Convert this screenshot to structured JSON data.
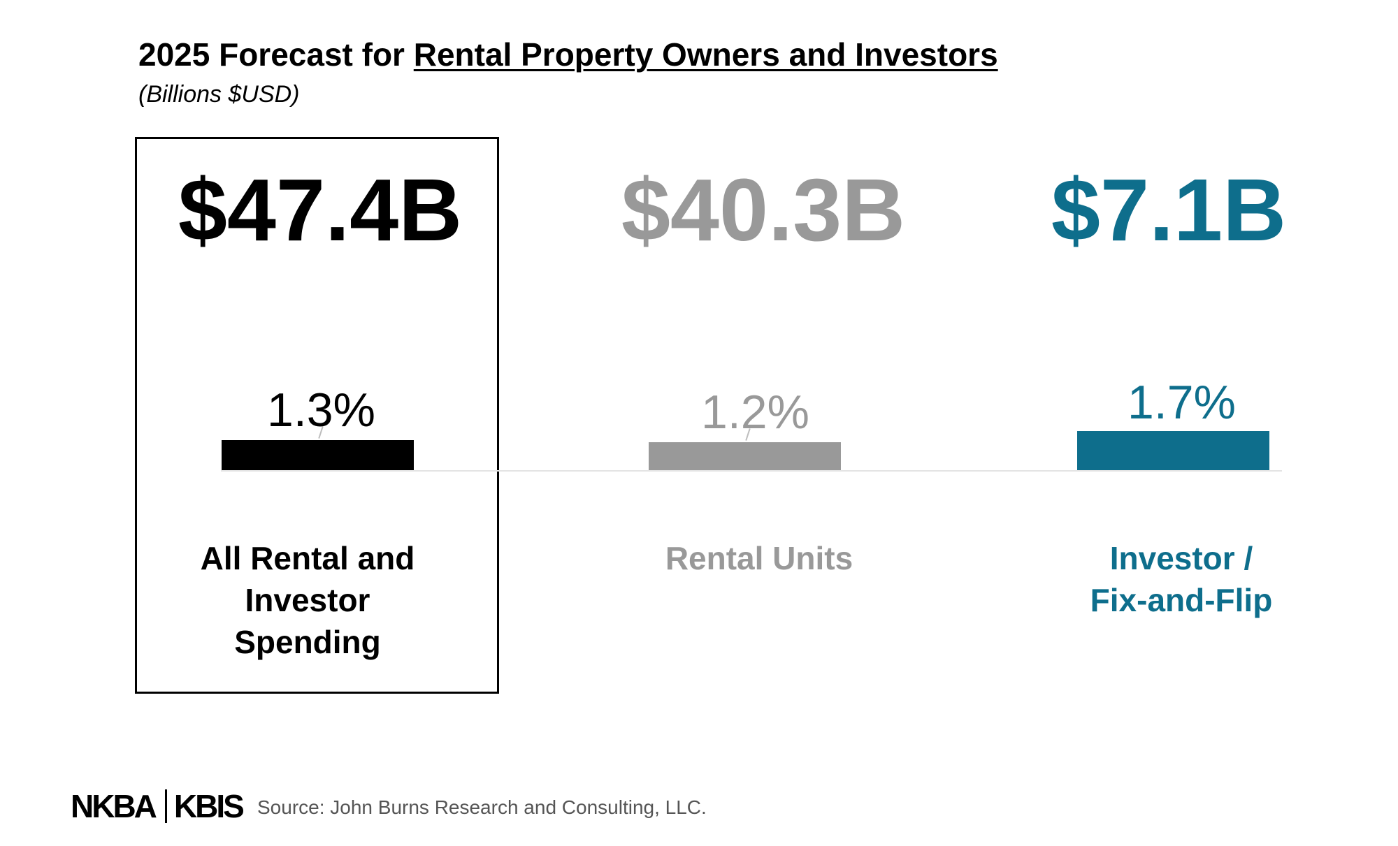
{
  "title": {
    "prefix": "2025 Forecast for ",
    "underlined": "Rental Property Owners and Investors"
  },
  "subtitle": "(Billions $USD)",
  "colors": {
    "total": "#000000",
    "rental": "#999999",
    "investor": "#0e6e8c"
  },
  "chart_data": {
    "type": "bar",
    "title": "2025 Forecast for Rental Property Owners and Investors",
    "subtitle": "(Billions $USD)",
    "categories": [
      "All Rental and Investor Spending",
      "Rental Units",
      "Investor / Fix-and-Flip"
    ],
    "spending_labels": [
      "$47.4B",
      "$40.3B",
      "$7.1B"
    ],
    "spending_billions": [
      47.4,
      40.3,
      7.1
    ],
    "growth_labels": [
      "1.3%",
      "1.2%",
      "1.7%"
    ],
    "values": [
      1.3,
      1.2,
      1.7
    ],
    "ylim": [
      0,
      1.7
    ],
    "grid": false,
    "legend": "none"
  },
  "labels": {
    "total_lines": [
      "All Rental and",
      "Investor",
      "Spending"
    ],
    "rental_lines": [
      "Rental Units"
    ],
    "investor_lines": [
      "Investor /",
      "Fix-and-Flip"
    ]
  },
  "footer": {
    "logo_left": "NKBA",
    "logo_right": "KBIS",
    "source": "Source: John Burns Research and Consulting, LLC."
  }
}
